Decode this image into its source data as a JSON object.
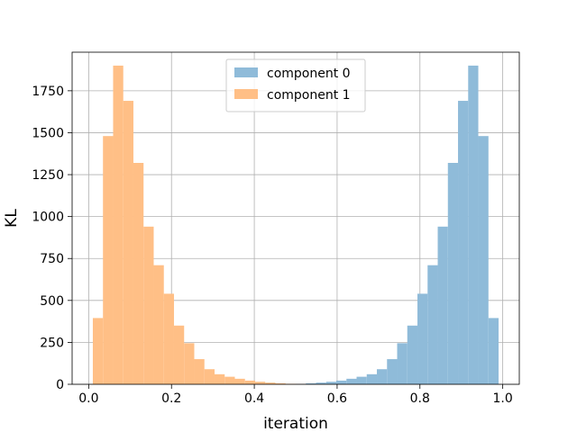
{
  "chart_data": {
    "type": "bar",
    "title": "",
    "xlabel": "iteration",
    "ylabel": "KL",
    "xlim": [
      -0.04,
      1.04
    ],
    "ylim": [
      0,
      1980
    ],
    "xticks": [
      0.0,
      0.2,
      0.4,
      0.6,
      0.8,
      1.0
    ],
    "xtick_labels": [
      "0.0",
      "0.2",
      "0.4",
      "0.6",
      "0.8",
      "1.0"
    ],
    "yticks": [
      0,
      250,
      500,
      750,
      1000,
      1250,
      1500,
      1750
    ],
    "ytick_labels": [
      "0",
      "250",
      "500",
      "750",
      "1000",
      "1250",
      "1500",
      "1750"
    ],
    "grid": true,
    "legend_position": "top-center",
    "bin_width": 0.0245,
    "bin_start": 0.01,
    "series": [
      {
        "name": "component 0",
        "color": "#8fbbd9",
        "values": [
          0,
          0,
          0,
          0,
          0,
          0,
          0,
          0,
          0,
          0,
          0,
          0,
          0,
          0,
          0,
          0,
          0,
          0,
          0,
          2,
          3,
          6,
          10,
          15,
          22,
          33,
          45,
          60,
          90,
          150,
          245,
          350,
          540,
          710,
          940,
          1320,
          1690,
          1900,
          1480,
          395
        ]
      },
      {
        "name": "component 1",
        "color": "#ffbf86",
        "values": [
          395,
          1480,
          1900,
          1690,
          1320,
          940,
          710,
          540,
          350,
          245,
          150,
          90,
          60,
          45,
          33,
          22,
          15,
          10,
          6,
          3,
          2,
          0,
          0,
          0,
          0,
          0,
          0,
          0,
          0,
          0,
          0,
          0,
          0,
          0,
          0,
          0,
          0,
          0,
          0,
          0
        ]
      }
    ]
  }
}
